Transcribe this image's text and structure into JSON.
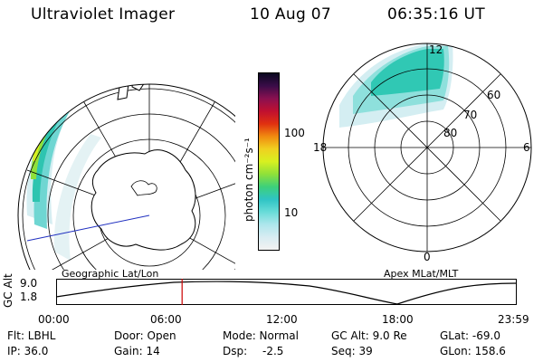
{
  "header": {
    "instrument": "Ultraviolet Imager",
    "date": "10 Aug 07",
    "time": "06:35:16 UT"
  },
  "colorbar": {
    "units": "photon cm⁻²s⁻¹",
    "ticks": [
      "100",
      "10"
    ],
    "colors": [
      "#f2f2f2",
      "#d8ecf2",
      "#aee6ec",
      "#68dcd8",
      "#2fc4c4",
      "#3dd07a",
      "#8fe03a",
      "#d8f020",
      "#f0d020",
      "#f08a10",
      "#e03010",
      "#c01030",
      "#8a1050",
      "#3a0c48",
      "#0a0820"
    ]
  },
  "geo_map": {
    "caption": "Geographic Lat/Lon"
  },
  "polar_map": {
    "caption": "Apex  MLat/MLT",
    "mlt_labels": {
      "top": "12",
      "left": "18",
      "right": "6",
      "bottom": "0"
    },
    "lat_labels": [
      "60",
      "70",
      "80"
    ]
  },
  "timeline": {
    "ylabel": "GC Alt",
    "yticks": [
      "9.0",
      "1.8"
    ],
    "xticks": [
      "00:00",
      "06:00",
      "12:00",
      "18:00",
      "23:59"
    ],
    "current_time_fraction": 0.274
  },
  "info": {
    "row1": {
      "filter": "Flt: LBHL",
      "door": "Door: Open",
      "mode": "Mode: Normal",
      "gcalt": "GC Alt: 9.0 Re",
      "glat": "GLat: -69.0"
    },
    "row2": {
      "ip": "IP: 36.0",
      "gain": "Gain: 14",
      "dsp_label": "Dsp:",
      "dsp_value": "-2.5",
      "seq": "Seq: 39",
      "glon": "GLon: 158.6"
    }
  },
  "colors": {
    "marker": "#cc0000",
    "meridian": "#2030c0"
  }
}
